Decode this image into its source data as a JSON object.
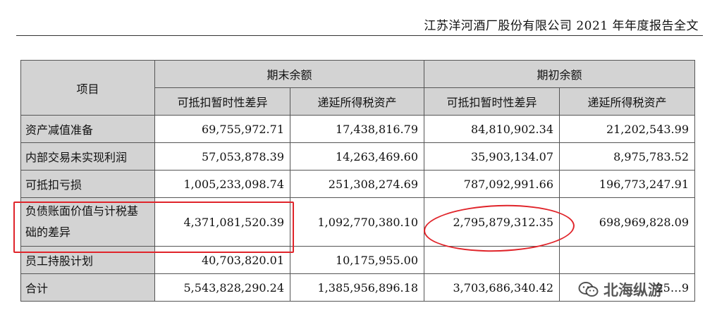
{
  "header": {
    "title": "江苏洋河酒厂股份有限公司 2021 年年度报告全文"
  },
  "table": {
    "col_item": "项目",
    "group_end": "期末余额",
    "group_begin": "期初余额",
    "sub_deductible": "可抵扣暂时性差异",
    "sub_deferred": "递延所得税资产",
    "rows": [
      {
        "label": "资产减值准备",
        "end_diff": "69,755,972.71",
        "end_dta": "17,438,816.79",
        "beg_diff": "84,810,902.34",
        "beg_dta": "21,202,543.99"
      },
      {
        "label": "内部交易未实现利润",
        "end_diff": "57,053,878.39",
        "end_dta": "14,263,469.60",
        "beg_diff": "35,903,134.07",
        "beg_dta": "8,975,783.52"
      },
      {
        "label": "可抵扣亏损",
        "end_diff": "1,005,233,098.74",
        "end_dta": "251,308,274.69",
        "beg_diff": "787,092,991.66",
        "beg_dta": "196,773,247.91"
      },
      {
        "label_line1": "负债账面价值与计税基",
        "label_line2": "础的差异",
        "end_diff": "4,371,081,520.39",
        "end_dta": "1,092,770,380.10",
        "beg_diff": "2,795,879,312.35",
        "beg_dta": "698,969,828.09"
      },
      {
        "label": "员工持股计划",
        "end_diff": "40,703,820.01",
        "end_dta": "10,175,955.00",
        "beg_diff": "",
        "beg_dta": ""
      },
      {
        "label": "合计",
        "end_diff": "5,543,828,290.24",
        "end_dta": "1,385,956,896.18",
        "beg_diff": "3,703,686,340.42",
        "beg_dta": "25…9"
      }
    ]
  },
  "watermark": {
    "text": "北海纵游"
  },
  "colors": {
    "highlight": "#e0242a",
    "header_bg": "#d3d3d3"
  }
}
